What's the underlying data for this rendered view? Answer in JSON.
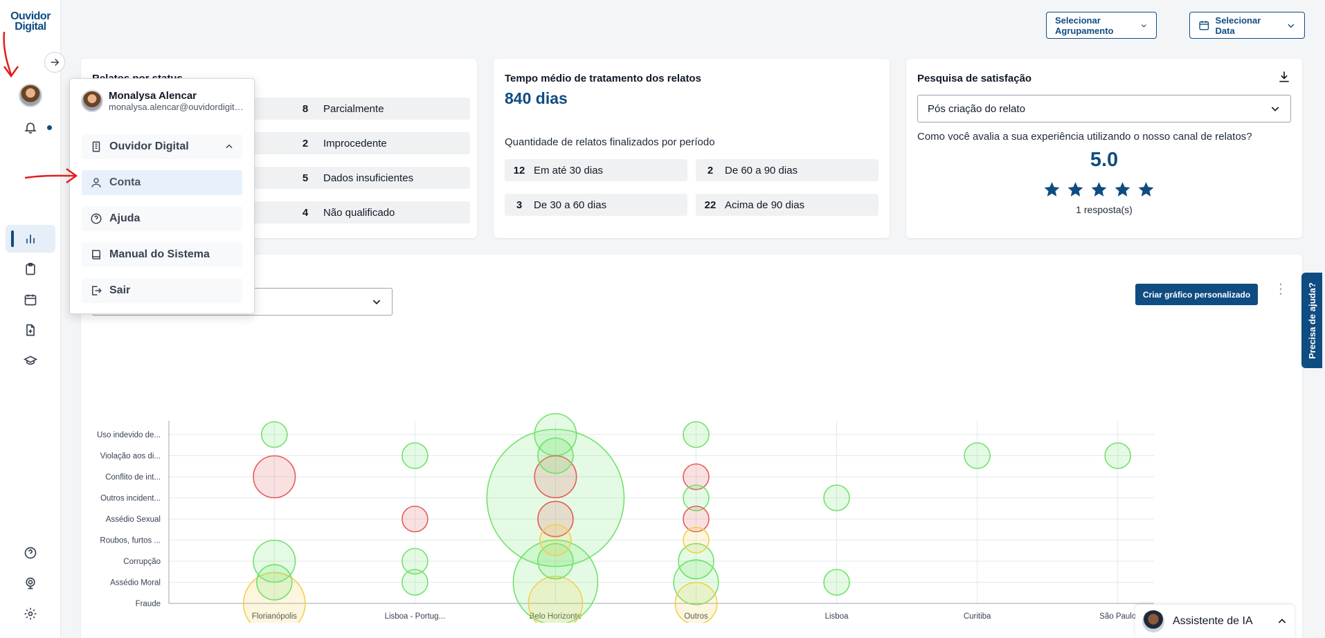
{
  "brand": {
    "logo_line1": "Ouvidor",
    "logo_line2": "Digital"
  },
  "topbar": {
    "grouping_label": "Selecionar Agrupamento",
    "date_label": "Selecionar Data"
  },
  "status_card": {
    "title": "Relatos por status",
    "items": [
      {
        "count": "8",
        "label": "Parcialmente"
      },
      {
        "count": "2",
        "label": "Improcedente"
      },
      {
        "count": "5",
        "label": "Dados insuficientes"
      },
      {
        "count": "4",
        "label": "Não qualificado"
      }
    ]
  },
  "time_card": {
    "title": "Tempo médio de tratamento dos relatos",
    "value": "840 dias",
    "subtitle": "Quantidade de relatos finalizados por período",
    "items": [
      {
        "count": "12",
        "label": "Em até 30 dias"
      },
      {
        "count": "2",
        "label": "De 60 a 90 dias"
      },
      {
        "count": "3",
        "label": "De 30 a 60 dias"
      },
      {
        "count": "22",
        "label": "Acima de 90 dias"
      }
    ]
  },
  "survey_card": {
    "title": "Pesquisa de satisfação",
    "select_value": "Pós criação do relato",
    "question": "Como você avalia a sua experiência utilizando o nosso canal de relatos?",
    "score": "5.0",
    "rating": 5,
    "responses": "1 resposta(s)"
  },
  "chart_section": {
    "custom_button": "Criar gráfico personalizado"
  },
  "chart_data": {
    "type": "scatter",
    "categories_x": [
      "Florianópolis",
      "Lisboa - Portug...",
      "Belo Horizonte",
      "Outros",
      "Lisboa",
      "Curitiba",
      "São Paulo"
    ],
    "categories_y": [
      "Uso indevido de...",
      "Violação aos di...",
      "Conflito de int...",
      "Outros incident...",
      "Assédio Sexual",
      "Roubos, furtos ...",
      "Corrupção",
      "Assédio Moral",
      "Fraude"
    ],
    "colors": {
      "green": "#6ee36a",
      "red": "#e45b5b",
      "yellow": "#f2cf4b"
    },
    "points": [
      {
        "x": "Florianópolis",
        "y": "Uso indevido de...",
        "size": 1,
        "color": "green"
      },
      {
        "x": "Florianópolis",
        "y": "Conflito de int...",
        "size": 5,
        "color": "red"
      },
      {
        "x": "Florianópolis",
        "y": "Corrupção",
        "size": 5,
        "color": "green"
      },
      {
        "x": "Florianópolis",
        "y": "Assédio Moral",
        "size": 3,
        "color": "green"
      },
      {
        "x": "Florianópolis",
        "y": "Fraude",
        "size": 14,
        "color": "yellow"
      },
      {
        "x": "Lisboa - Portug...",
        "y": "Violação aos di...",
        "size": 1,
        "color": "green"
      },
      {
        "x": "Lisboa - Portug...",
        "y": "Assédio Sexual",
        "size": 1,
        "color": "red"
      },
      {
        "x": "Lisboa - Portug...",
        "y": "Corrupção",
        "size": 1,
        "color": "green"
      },
      {
        "x": "Lisboa - Portug...",
        "y": "Assédio Moral",
        "size": 1,
        "color": "green"
      },
      {
        "x": "Belo Horizonte",
        "y": "Uso indevido de...",
        "size": 5,
        "color": "green"
      },
      {
        "x": "Belo Horizonte",
        "y": "Violação aos di...",
        "size": 3,
        "color": "green"
      },
      {
        "x": "Belo Horizonte",
        "y": "Conflito de int...",
        "size": 5,
        "color": "red"
      },
      {
        "x": "Belo Horizonte",
        "y": "Outros incident...",
        "size": 90,
        "color": "green"
      },
      {
        "x": "Belo Horizonte",
        "y": "Assédio Sexual",
        "size": 3,
        "color": "red"
      },
      {
        "x": "Belo Horizonte",
        "y": "Roubos, furtos ...",
        "size": 2,
        "color": "yellow"
      },
      {
        "x": "Belo Horizonte",
        "y": "Corrupção",
        "size": 3,
        "color": "green"
      },
      {
        "x": "Belo Horizonte",
        "y": "Assédio Moral",
        "size": 30,
        "color": "green"
      },
      {
        "x": "Belo Horizonte",
        "y": "Fraude",
        "size": 10,
        "color": "yellow"
      },
      {
        "x": "Outros",
        "y": "Uso indevido de...",
        "size": 1,
        "color": "green"
      },
      {
        "x": "Outros",
        "y": "Conflito de int...",
        "size": 1,
        "color": "red"
      },
      {
        "x": "Outros",
        "y": "Outros incident...",
        "size": 1,
        "color": "green"
      },
      {
        "x": "Outros",
        "y": "Assédio Sexual",
        "size": 1,
        "color": "red"
      },
      {
        "x": "Outros",
        "y": "Roubos, furtos ...",
        "size": 1,
        "color": "yellow"
      },
      {
        "x": "Outros",
        "y": "Corrupção",
        "size": 3,
        "color": "green"
      },
      {
        "x": "Outros",
        "y": "Assédio Moral",
        "size": 6,
        "color": "green"
      },
      {
        "x": "Outros",
        "y": "Fraude",
        "size": 5,
        "color": "yellow"
      },
      {
        "x": "Lisboa",
        "y": "Outros incident...",
        "size": 1,
        "color": "green"
      },
      {
        "x": "Lisboa",
        "y": "Assédio Moral",
        "size": 1,
        "color": "green"
      },
      {
        "x": "Curitiba",
        "y": "Violação aos di...",
        "size": 1,
        "color": "green"
      },
      {
        "x": "São Paulo",
        "y": "Violação aos di...",
        "size": 1,
        "color": "green"
      }
    ]
  },
  "profile_menu": {
    "name": "Monalysa Alencar",
    "email": "monalysa.alencar@ouvidordigital.com.br",
    "org": "Ouvidor Digital",
    "items": [
      {
        "label": "Conta",
        "icon": "user-icon"
      },
      {
        "label": "Ajuda",
        "icon": "question-icon"
      },
      {
        "label": "Manual do Sistema",
        "icon": "book-icon"
      },
      {
        "label": "Sair",
        "icon": "logout-icon"
      }
    ]
  },
  "help_tab": "Precisa de ajuda?",
  "ai_assistant": {
    "label": "Assistente de IA"
  }
}
